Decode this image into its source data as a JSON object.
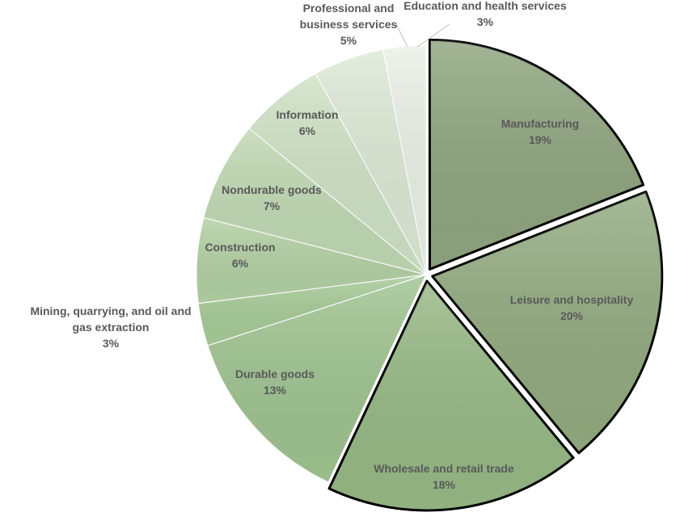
{
  "chart_data": {
    "type": "pie",
    "title": "",
    "slices": [
      {
        "label": "Manufacturing",
        "value": 19,
        "value_label": "19%",
        "color": "#8fa57f",
        "exploded": true
      },
      {
        "label": "Leisure and hospitality",
        "value": 20,
        "value_label": "20%",
        "color": "#92ab80",
        "exploded": true
      },
      {
        "label": "Wholesale and retail trade",
        "value": 18,
        "value_label": "18%",
        "color": "#97b985",
        "exploded": true
      },
      {
        "label": "Durable goods",
        "value": 13,
        "value_label": "13%",
        "color": "#9fc490",
        "exploded": false
      },
      {
        "label": "Mining, quarrying, and oil and gas extraction",
        "value": 3,
        "value_label": "3%",
        "color": "#a7cb97",
        "exploded": false
      },
      {
        "label": "Construction",
        "value": 6,
        "value_label": "6%",
        "color": "#b3d1a4",
        "exploded": false
      },
      {
        "label": "Nondurable goods",
        "value": 7,
        "value_label": "7%",
        "color": "#c0d9b3",
        "exploded": false
      },
      {
        "label": "Information",
        "value": 6,
        "value_label": "6%",
        "color": "#cfe2c5",
        "exploded": false
      },
      {
        "label": "Professional and business services",
        "value": 5,
        "value_label": "5%",
        "color": "#dde9d6",
        "exploded": false
      },
      {
        "label": "Education and health services",
        "value": 3,
        "value_label": "3%",
        "color": "#eaf1e6",
        "exploded": false
      }
    ],
    "legend": "none"
  }
}
